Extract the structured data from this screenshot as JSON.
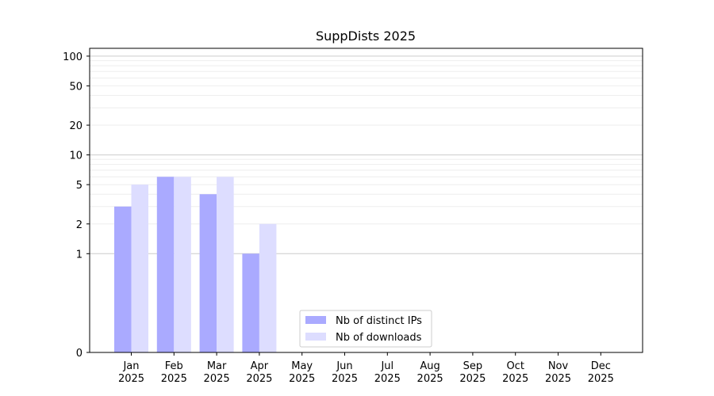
{
  "chart_data": {
    "type": "bar",
    "title": "SuppDists 2025",
    "xlabel": "",
    "ylabel": "",
    "categories": [
      [
        "Jan",
        "2025"
      ],
      [
        "Feb",
        "2025"
      ],
      [
        "Mar",
        "2025"
      ],
      [
        "Apr",
        "2025"
      ],
      [
        "May",
        "2025"
      ],
      [
        "Jun",
        "2025"
      ],
      [
        "Jul",
        "2025"
      ],
      [
        "Aug",
        "2025"
      ],
      [
        "Sep",
        "2025"
      ],
      [
        "Oct",
        "2025"
      ],
      [
        "Nov",
        "2025"
      ],
      [
        "Dec",
        "2025"
      ]
    ],
    "series": [
      {
        "name": "Nb of distinct IPs",
        "color": "#aaaaff",
        "values": [
          3,
          6,
          4,
          1,
          0,
          0,
          0,
          0,
          0,
          0,
          0,
          0
        ]
      },
      {
        "name": "Nb of downloads",
        "color": "#ddddff",
        "values": [
          5,
          6,
          6,
          2,
          0,
          0,
          0,
          0,
          0,
          0,
          0,
          0
        ]
      }
    ],
    "y_scale": "symlog",
    "ylim": [
      0,
      120
    ],
    "yticks": [
      0,
      1,
      2,
      5,
      10,
      20,
      50,
      100
    ],
    "grid": true,
    "legend_position": "lower-center"
  }
}
